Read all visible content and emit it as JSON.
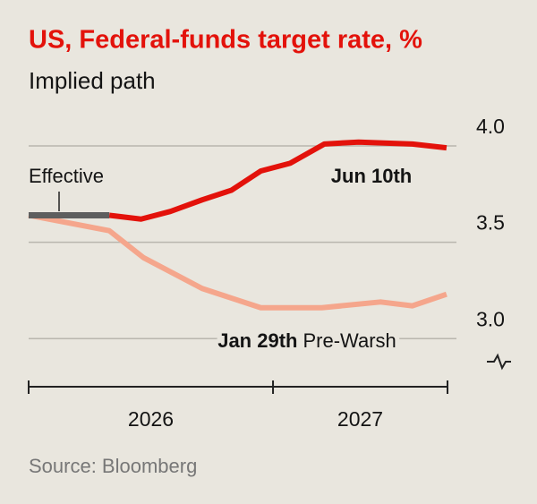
{
  "chart_data": {
    "type": "line",
    "title": "US, Federal-funds target rate, %",
    "subtitle": "Implied path",
    "source": "Source: Bloomberg",
    "series": [
      {
        "name": "Jan 29th",
        "annotation": "Pre-Warsh",
        "color": "#f5a68c",
        "x": [
          2026.0,
          2026.33,
          2026.47,
          2026.71,
          2026.95,
          2027.2,
          2027.44,
          2027.57,
          2027.71
        ],
        "values": [
          3.64,
          3.56,
          3.42,
          3.26,
          3.16,
          3.16,
          3.19,
          3.17,
          3.23
        ]
      },
      {
        "name": "Jun 10th",
        "color": "#e3120b",
        "x": [
          2026.33,
          2026.46,
          2026.58,
          2026.71,
          2026.83,
          2026.95,
          2027.07,
          2027.21,
          2027.35,
          2027.57,
          2027.71
        ],
        "values": [
          3.64,
          3.62,
          3.66,
          3.72,
          3.77,
          3.87,
          3.91,
          4.01,
          4.02,
          4.01,
          3.99
        ]
      },
      {
        "name": "Effective",
        "color": "#5e5e5e",
        "x": [
          2026.0,
          2026.33
        ],
        "values": [
          3.64,
          3.64
        ]
      }
    ],
    "xlim": [
      2026.0,
      2027.714
    ],
    "xticks": [
      2026,
      2027
    ],
    "ylim": [
      2.75,
      4.0
    ],
    "yticks": [
      {
        "value": 3,
        "label": "3.0"
      },
      3.5,
      {
        "value": 4,
        "label": "4.0"
      }
    ],
    "grid": true
  }
}
